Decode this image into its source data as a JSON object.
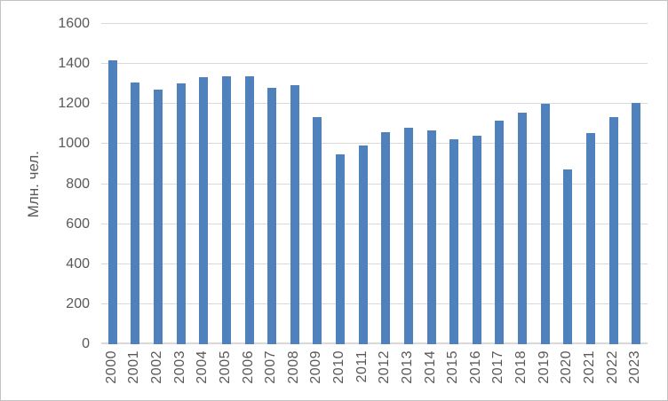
{
  "chart_data": {
    "type": "bar",
    "title": "",
    "ylabel": "Млн. чел.",
    "xlabel": "",
    "categories": [
      "2000",
      "2001",
      "2002",
      "2003",
      "2004",
      "2005",
      "2006",
      "2007",
      "2008",
      "2009",
      "2010",
      "2011",
      "2012",
      "2013",
      "2014",
      "2015",
      "2016",
      "2017",
      "2018",
      "2019",
      "2020",
      "2021",
      "2022",
      "2023"
    ],
    "values": [
      1419,
      1306,
      1271,
      1304,
      1335,
      1339,
      1339,
      1282,
      1296,
      1137,
      947,
      993,
      1059,
      1080,
      1070,
      1025,
      1040,
      1118,
      1157,
      1202,
      872,
      1056,
      1136,
      1205
    ],
    "ylim": [
      0,
      1600
    ],
    "yticks": [
      0,
      200,
      400,
      600,
      800,
      1000,
      1200,
      1400,
      1600
    ],
    "grid": true,
    "legend": false
  },
  "colors": {
    "bar": "#4f81bd",
    "grid": "#d9d9d9",
    "axis": "#d9d9d9",
    "label": "#595959",
    "border": "#c3c3c3",
    "background": "#ffffff"
  }
}
